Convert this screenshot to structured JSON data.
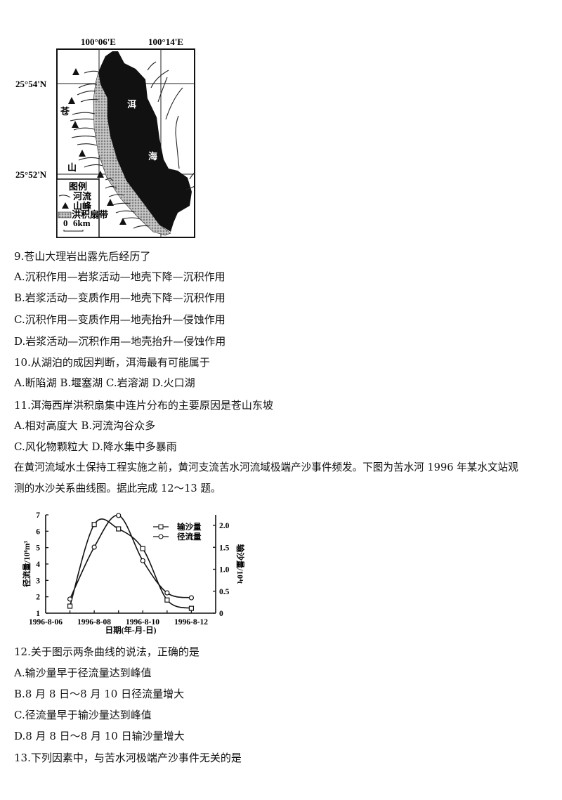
{
  "map": {
    "lon_labels": [
      "100°06'E",
      "100°14'E"
    ],
    "lat_labels": [
      "25°54'N",
      "25°52'N"
    ],
    "mountain_label": [
      "苍",
      "山"
    ],
    "lake_label": [
      "洱",
      "海"
    ],
    "legend": {
      "title": "图例",
      "items": [
        "河流",
        "山峰",
        "洪积扇带"
      ],
      "scale": [
        "0",
        "6km"
      ]
    }
  },
  "questions_part1": [
    "9.苍山大理岩出露先后经历了",
    "A.沉积作用—岩浆活动—地壳下降—沉积作用",
    "B.岩浆活动—变质作用—地壳下降—沉积作用",
    "C.沉积作用—变质作用—地壳抬升—侵蚀作用",
    "D.岩浆活动—沉积作用—地壳抬升—侵蚀作用",
    "10.从湖泊的成因判断，洱海最有可能属于",
    "A.断陷湖 B.堰塞湖 C.岩溶湖 D.火口湖",
    "11.洱海西岸洪积扇集中连片分布的主要原因是苍山东坡",
    "A.相对高度大 B.河流沟谷众多",
    "C.风化物颗粒大 D.降水集中多暴雨",
    "在黄河流域水土保持工程实施之前，黄河支流苦水河流域极端产沙事件频发。下图为苦水河 1996 年某水文站观",
    "测的水沙关系曲线图。据此完成 12～13 题。"
  ],
  "questions_part2": [
    "12.关于图示两条曲线的说法，正确的是",
    "A.输沙量早于径流量达到峰值",
    "B.8 月 8 日～8 月 10 日径流量增大",
    "C.径流量早于输沙量达到峰值",
    "D.8 月 8 日～8 月 10 日输沙量增大",
    "13.下列因素中，与苦水河极端产沙事件无关的是"
  ],
  "chart_data": {
    "type": "line",
    "xlabel": "日期(年-月-日)",
    "ylabel_left": "径流量/10⁶m³",
    "ylabel_right": "输沙量/10⁴t",
    "x_tick_labels": [
      "1996-8-06",
      "1996-8-08",
      "1996-8-10",
      "1996-8-12"
    ],
    "x": [
      "1996-8-07",
      "1996-8-08",
      "1996-8-09",
      "1996-8-10",
      "1996-8-11",
      "1996-8-12"
    ],
    "xlim": [
      "1996-8-06",
      "1996-8-13"
    ],
    "ylim_left": [
      1,
      7
    ],
    "y_ticks_left": [
      "1",
      "2",
      "3",
      "4",
      "5",
      "6",
      "7"
    ],
    "ylim_right": [
      0,
      2.2
    ],
    "y_ticks_right": [
      "0",
      "0.5",
      "1.0",
      "1.5",
      "2.0"
    ],
    "series": [
      {
        "name": "输沙量",
        "axis": "right",
        "marker": "square",
        "values": [
          0.16,
          2.02,
          1.92,
          1.47,
          0.3,
          0.11
        ]
      },
      {
        "name": "径流量",
        "axis": "left",
        "marker": "circle",
        "values": [
          1.86,
          5.03,
          6.96,
          4.2,
          2.24,
          1.94
        ]
      }
    ],
    "legend_position": "top-right",
    "grid": false
  }
}
